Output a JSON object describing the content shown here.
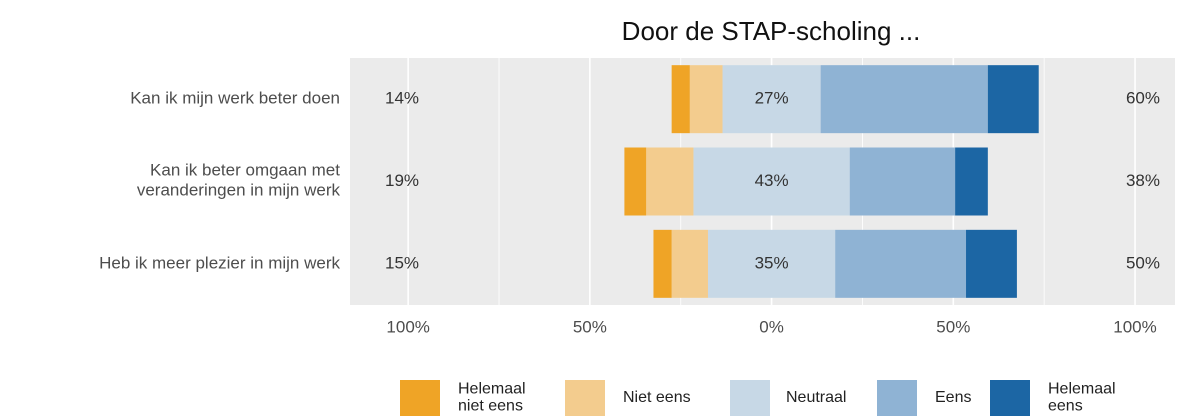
{
  "chart_data": {
    "type": "diverging_bar",
    "title": "Door de STAP-scholing ...",
    "categories": [
      "Kan ik mijn werk beter doen",
      "Kan ik beter omgaan met\nveranderingen in mijn werk",
      "Heb ik meer plezier in mijn werk"
    ],
    "series": [
      {
        "name": "Helemaal\nniet eens",
        "color": "#EFA426",
        "values": [
          5,
          6,
          5
        ]
      },
      {
        "name": "Niet eens",
        "color": "#F3CC8E",
        "values": [
          9,
          13,
          10
        ]
      },
      {
        "name": "Neutraal",
        "color": "#C7D8E6",
        "values": [
          27,
          43,
          35
        ]
      },
      {
        "name": "Eens",
        "color": "#8FB3D4",
        "values": [
          46,
          29,
          36
        ]
      },
      {
        "name": "Helemaal\neens",
        "color": "#1C66A4",
        "values": [
          14,
          9,
          14
        ]
      }
    ],
    "neutral_series": 2,
    "low_totals": {
      "values": [
        14,
        19,
        15
      ],
      "value_labels": [
        "14%",
        "19%",
        "15%"
      ]
    },
    "neutral_labels": {
      "values": [
        27,
        43,
        35
      ],
      "value_labels": [
        "27%",
        "43%",
        "35%"
      ]
    },
    "high_totals": {
      "values": [
        60,
        38,
        50
      ],
      "value_labels": [
        "60%",
        "38%",
        "50%"
      ]
    },
    "xlim": [
      -116,
      111
    ],
    "xticks": [
      {
        "value": -100,
        "label": "100%"
      },
      {
        "value": -50,
        "label": "50%"
      },
      {
        "value": 0,
        "label": "0%"
      },
      {
        "value": 50,
        "label": "50%"
      },
      {
        "value": 100,
        "label": "100%"
      }
    ],
    "xminor": [
      -75,
      -25,
      25,
      75
    ],
    "grid": true
  }
}
